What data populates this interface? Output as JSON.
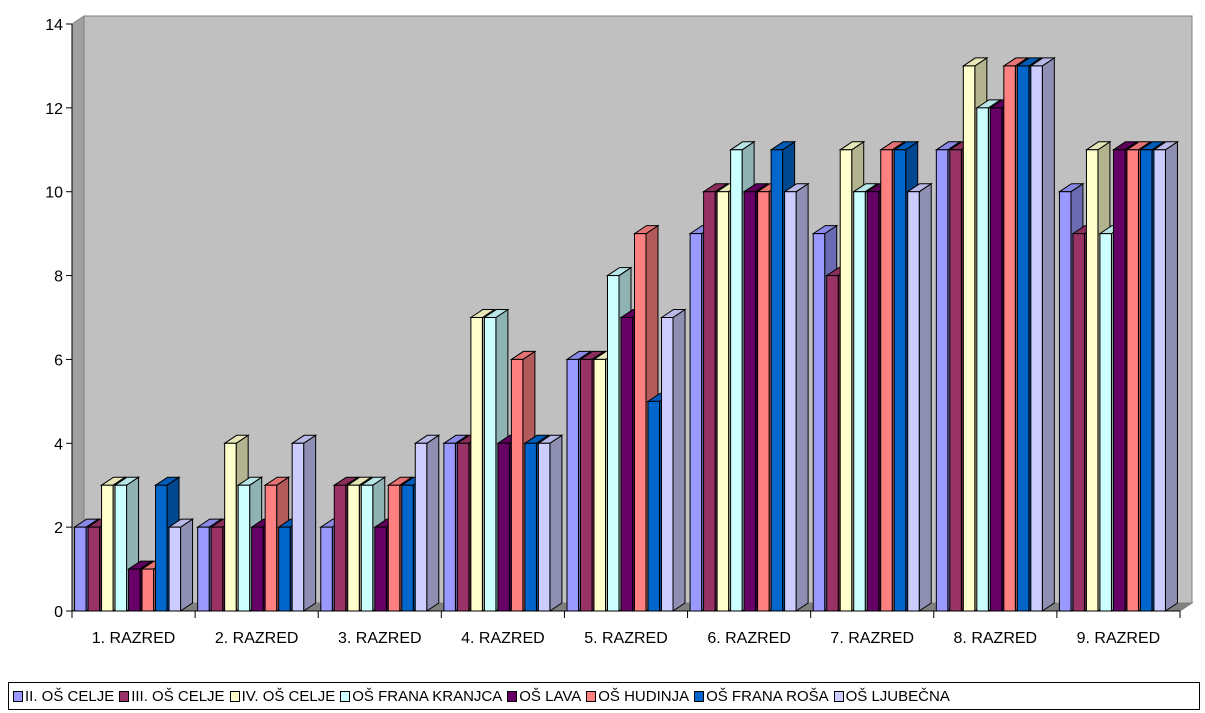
{
  "chart_data": {
    "type": "bar",
    "title": "",
    "xlabel": "",
    "ylabel": "",
    "ylim": [
      0,
      14
    ],
    "yticks": [
      0,
      2,
      4,
      6,
      8,
      10,
      12,
      14
    ],
    "grid": false,
    "legend_position": "bottom",
    "categories": [
      "1. RAZRED",
      "2. RAZRED",
      "3. RAZRED",
      "4. RAZRED",
      "5. RAZRED",
      "6. RAZRED",
      "7. RAZRED",
      "8. RAZRED",
      "9. RAZRED"
    ],
    "series": [
      {
        "name": "II. OŠ CELJE",
        "color": "#9999ff",
        "values": [
          2,
          2,
          2,
          4,
          6,
          9,
          9,
          11,
          10
        ]
      },
      {
        "name": "III. OŠ CELJE",
        "color": "#993366",
        "values": [
          2,
          2,
          3,
          4,
          6,
          10,
          8,
          11,
          9
        ]
      },
      {
        "name": "IV. OŠ CELJE",
        "color": "#ffffcc",
        "values": [
          3,
          4,
          3,
          7,
          6,
          10,
          11,
          13,
          11
        ]
      },
      {
        "name": "OŠ FRANA KRANJCA",
        "color": "#ccffff",
        "values": [
          3,
          3,
          3,
          7,
          8,
          11,
          10,
          12,
          9
        ]
      },
      {
        "name": "OŠ LAVA",
        "color": "#660066",
        "values": [
          1,
          2,
          2,
          4,
          7,
          10,
          10,
          12,
          11
        ]
      },
      {
        "name": "OŠ HUDINJA",
        "color": "#ff8080",
        "values": [
          1,
          3,
          3,
          6,
          9,
          10,
          11,
          13,
          11
        ]
      },
      {
        "name": "OŠ FRANA ROŠA",
        "color": "#0066cc",
        "values": [
          3,
          2,
          3,
          4,
          5,
          11,
          11,
          13,
          11
        ]
      },
      {
        "name": "OŠ LJUBEČNA",
        "color": "#ccccff",
        "values": [
          2,
          4,
          4,
          4,
          7,
          10,
          10,
          13,
          11
        ]
      }
    ]
  }
}
